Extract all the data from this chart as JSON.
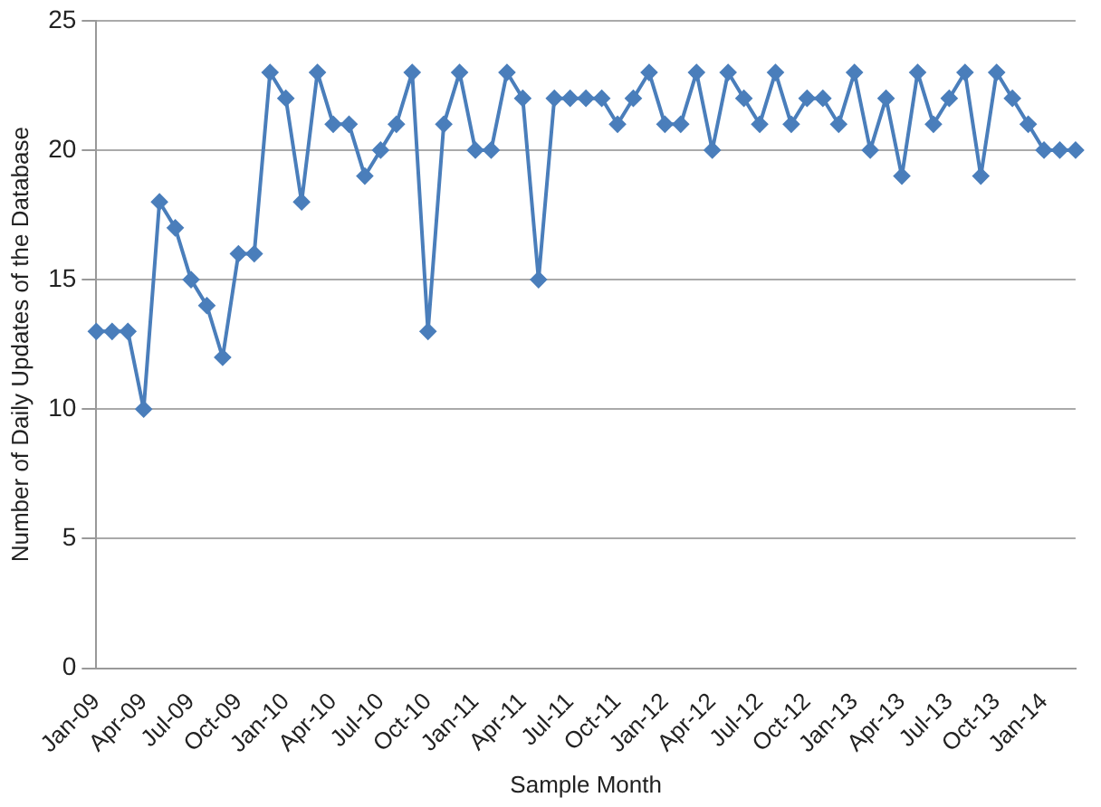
{
  "chart_data": {
    "type": "line",
    "xlabel": "Sample Month",
    "ylabel": "Number of Daily Updates of the Database",
    "categories": [
      "Jan-09",
      null,
      null,
      "Apr-09",
      null,
      null,
      "Jul-09",
      null,
      null,
      "Oct-09",
      null,
      null,
      "Jan-10",
      null,
      null,
      "Apr-10",
      null,
      null,
      "Jul-10",
      null,
      null,
      "Oct-10",
      null,
      null,
      "Jan-11",
      null,
      null,
      "Apr-11",
      null,
      null,
      "Jul-11",
      null,
      null,
      "Oct-11",
      null,
      null,
      "Jan-12",
      null,
      null,
      "Apr-12",
      null,
      null,
      "Jul-12",
      null,
      null,
      "Oct-12",
      null,
      null,
      "Jan-13",
      null,
      null,
      "Apr-13",
      null,
      null,
      "Jul-13",
      null,
      null,
      "Oct-13",
      null,
      null,
      "Jan-14",
      null,
      null
    ],
    "series": [
      {
        "color": "#4a7ebb",
        "values": [
          13,
          13,
          13,
          10,
          18,
          17,
          15,
          14,
          12,
          16,
          16,
          23,
          22,
          18,
          23,
          21,
          21,
          19,
          20,
          21,
          23,
          13,
          21,
          23,
          20,
          20,
          23,
          22,
          15,
          22,
          22,
          22,
          22,
          21,
          22,
          23,
          21,
          21,
          23,
          20,
          23,
          22,
          21,
          23,
          21,
          22,
          22,
          21,
          23,
          20,
          22,
          19,
          23,
          21,
          22,
          23,
          19,
          23,
          22,
          21,
          20,
          20,
          20
        ]
      }
    ],
    "ylim": [
      0,
      25
    ],
    "yticks": [
      0,
      5,
      10,
      15,
      20,
      25
    ],
    "grid": "y",
    "legend": false,
    "marker": "diamond",
    "line_style": "solid"
  }
}
